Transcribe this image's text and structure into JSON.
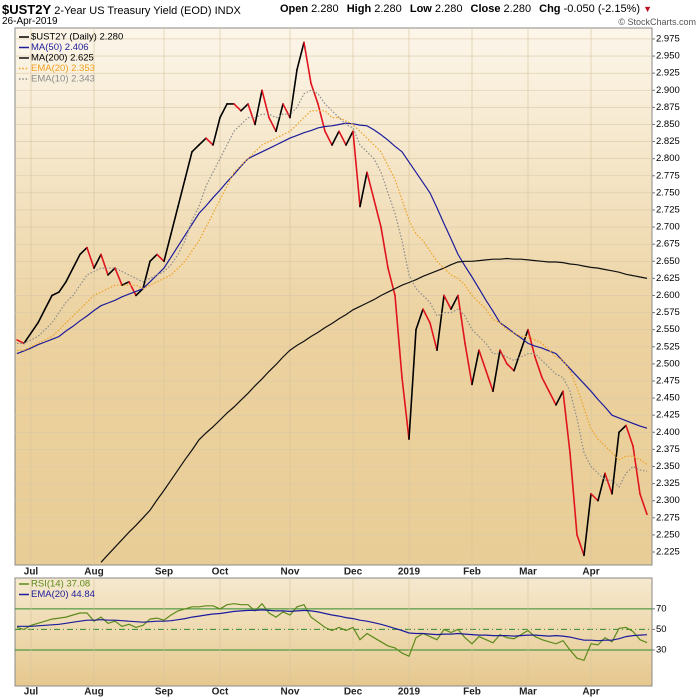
{
  "header": {
    "symbol": "$UST2Y",
    "name": "2-Year US Treasury Yield (EOD)",
    "exchange": "INDX",
    "date": "26-Apr-2019",
    "quote": [
      {
        "label": "Open",
        "value": "2.280"
      },
      {
        "label": "High",
        "value": "2.280"
      },
      {
        "label": "Low",
        "value": "2.280"
      },
      {
        "label": "Close",
        "value": "2.280"
      },
      {
        "label": "Chg",
        "value": "-0.050 (-2.15%)"
      }
    ],
    "credit": "© StockCharts.com"
  },
  "chart_data": [
    {
      "type": "line",
      "grid": true,
      "categories": [
        null,
        null,
        "Jul",
        null,
        null,
        null,
        null,
        null,
        null,
        null,
        null,
        "Aug",
        null,
        null,
        null,
        null,
        null,
        null,
        null,
        null,
        null,
        "Sep",
        null,
        null,
        null,
        null,
        null,
        null,
        null,
        "Oct",
        null,
        null,
        null,
        null,
        null,
        null,
        null,
        null,
        null,
        "Nov",
        null,
        null,
        null,
        null,
        null,
        null,
        null,
        null,
        "Dec",
        null,
        null,
        null,
        null,
        null,
        null,
        null,
        "2019",
        null,
        null,
        null,
        null,
        null,
        null,
        null,
        null,
        "Feb",
        null,
        null,
        null,
        null,
        null,
        null,
        null,
        "Mar",
        null,
        null,
        null,
        null,
        null,
        null,
        null,
        null,
        "Apr",
        null,
        null,
        null,
        null,
        null,
        null,
        null,
        null
      ],
      "ylim": [
        2.206,
        2.991
      ],
      "yticks": [
        2.225,
        {
          "value": 2.25,
          "label": "2.250"
        },
        2.275,
        {
          "value": 2.3,
          "label": "2.300"
        },
        2.325,
        {
          "value": 2.35,
          "label": "2.350"
        },
        2.375,
        {
          "value": 2.4,
          "label": "2.400"
        },
        2.425,
        {
          "value": 2.45,
          "label": "2.450"
        },
        2.475,
        {
          "value": 2.5,
          "label": "2.500"
        },
        2.525,
        {
          "value": 2.55,
          "label": "2.550"
        },
        2.575,
        {
          "value": 2.6,
          "label": "2.600"
        },
        2.625,
        {
          "value": 2.65,
          "label": "2.650"
        },
        2.675,
        {
          "value": 2.7,
          "label": "2.700"
        },
        2.725,
        {
          "value": 2.75,
          "label": "2.750"
        },
        2.775,
        {
          "value": 2.8,
          "label": "2.800"
        },
        2.825,
        {
          "value": 2.85,
          "label": "2.850"
        },
        2.875,
        {
          "value": 2.9,
          "label": "2.900"
        },
        2.925,
        {
          "value": 2.95,
          "label": "2.950"
        },
        2.975
      ],
      "series": [
        {
          "name": "$UST2Y (Daily) 2.280",
          "color": "#000000",
          "down_color": "#e0141e",
          "values": [
            2.535,
            2.53,
            2.545,
            2.56,
            2.58,
            2.6,
            2.605,
            2.62,
            2.64,
            2.66,
            2.67,
            2.64,
            2.66,
            2.63,
            2.64,
            2.615,
            2.62,
            2.6,
            2.61,
            2.65,
            2.66,
            2.65,
            2.69,
            2.73,
            2.77,
            2.81,
            2.82,
            2.83,
            2.82,
            2.86,
            2.88,
            2.88,
            2.87,
            2.88,
            2.85,
            2.9,
            2.86,
            2.84,
            2.88,
            2.86,
            2.93,
            2.97,
            2.91,
            2.88,
            2.84,
            2.82,
            2.84,
            2.82,
            2.84,
            2.73,
            2.78,
            2.74,
            2.7,
            2.64,
            2.6,
            2.48,
            2.39,
            2.55,
            2.58,
            2.56,
            2.52,
            2.6,
            2.58,
            2.6,
            2.53,
            2.47,
            2.52,
            2.49,
            2.46,
            2.52,
            2.5,
            2.49,
            2.52,
            2.55,
            2.51,
            2.48,
            2.46,
            2.44,
            2.46,
            2.37,
            2.25,
            2.22,
            2.31,
            2.3,
            2.34,
            2.31,
            2.4,
            2.41,
            2.38,
            2.31,
            2.28
          ]
        },
        {
          "name": "MA(50) 2.406",
          "color": "#1c1c9c",
          "values": [
            2.515,
            2.519,
            2.523,
            2.528,
            2.532,
            2.536,
            2.54,
            2.548,
            2.555,
            2.563,
            2.57,
            2.578,
            2.585,
            2.589,
            2.593,
            2.598,
            2.602,
            2.606,
            2.61,
            2.62,
            2.63,
            2.64,
            2.656,
            2.672,
            2.688,
            2.704,
            2.72,
            2.731,
            2.743,
            2.754,
            2.766,
            2.777,
            2.789,
            2.8,
            2.805,
            2.81,
            2.815,
            2.82,
            2.825,
            2.83,
            2.834,
            2.838,
            2.841,
            2.845,
            2.847,
            2.848,
            2.85,
            2.852,
            2.851,
            2.849,
            2.848,
            2.842,
            2.835,
            2.827,
            2.818,
            2.81,
            2.795,
            2.78,
            2.765,
            2.75,
            2.728,
            2.705,
            2.683,
            2.66,
            2.643,
            2.627,
            2.61,
            2.593,
            2.577,
            2.56,
            2.553,
            2.545,
            2.538,
            2.53,
            2.526,
            2.523,
            2.519,
            2.515,
            2.504,
            2.493,
            2.482,
            2.471,
            2.46,
            2.448,
            2.437,
            2.425,
            2.421,
            2.417,
            2.413,
            2.409,
            2.406
          ]
        },
        {
          "name": "MA(200) 2.625",
          "color": "#111111",
          "values": [
            null,
            null,
            null,
            null,
            null,
            null,
            null,
            null,
            null,
            null,
            null,
            null,
            2.21,
            2.221,
            2.232,
            2.243,
            2.254,
            2.264,
            2.275,
            2.286,
            2.301,
            2.315,
            2.33,
            2.345,
            2.36,
            2.374,
            2.389,
            2.399,
            2.408,
            2.418,
            2.428,
            2.437,
            2.447,
            2.457,
            2.468,
            2.478,
            2.489,
            2.499,
            2.51,
            2.52,
            2.527,
            2.533,
            2.54,
            2.546,
            2.553,
            2.559,
            2.566,
            2.572,
            2.579,
            2.584,
            2.589,
            2.594,
            2.6,
            2.605,
            2.61,
            2.615,
            2.619,
            2.623,
            2.628,
            2.632,
            2.636,
            2.64,
            2.645,
            2.649,
            2.65,
            2.65,
            2.651,
            2.652,
            2.653,
            2.653,
            2.654,
            2.653,
            2.653,
            2.652,
            2.651,
            2.65,
            2.649,
            2.649,
            2.648,
            2.646,
            2.645,
            2.643,
            2.641,
            2.64,
            2.638,
            2.636,
            2.634,
            2.631,
            2.629,
            2.627,
            2.625
          ]
        },
        {
          "name": "EMA(20) 2.353",
          "color": "#f0a020",
          "dash": "dotted",
          "values": [
            2.52,
            2.52,
            2.525,
            2.53,
            2.535,
            2.54,
            2.55,
            2.56,
            2.57,
            2.58,
            2.59,
            2.6,
            2.605,
            2.61,
            2.615,
            2.615,
            2.615,
            2.615,
            2.61,
            2.615,
            2.62,
            2.625,
            2.63,
            2.64,
            2.65,
            2.665,
            2.68,
            2.7,
            2.72,
            2.74,
            2.76,
            2.78,
            2.79,
            2.8,
            2.81,
            2.82,
            2.825,
            2.83,
            2.835,
            2.84,
            2.85,
            2.86,
            2.87,
            2.87,
            2.87,
            2.86,
            2.86,
            2.855,
            2.85,
            2.84,
            2.83,
            2.82,
            2.81,
            2.79,
            2.77,
            2.74,
            2.71,
            2.69,
            2.68,
            2.665,
            2.65,
            2.64,
            2.63,
            2.625,
            2.615,
            2.6,
            2.59,
            2.58,
            2.565,
            2.56,
            2.55,
            2.545,
            2.54,
            2.54,
            2.535,
            2.53,
            2.52,
            2.51,
            2.505,
            2.49,
            2.465,
            2.435,
            2.405,
            2.39,
            2.38,
            2.37,
            2.36,
            2.365,
            2.365,
            2.36,
            2.353
          ]
        },
        {
          "name": "EMA(10) 2.343",
          "color": "#8c8c8c",
          "dash": "dotted",
          "values": [
            2.53,
            2.53,
            2.535,
            2.54,
            2.55,
            2.56,
            2.575,
            2.59,
            2.6,
            2.615,
            2.63,
            2.635,
            2.64,
            2.64,
            2.64,
            2.635,
            2.63,
            2.625,
            2.62,
            2.625,
            2.63,
            2.635,
            2.645,
            2.66,
            2.68,
            2.71,
            2.73,
            2.76,
            2.78,
            2.8,
            2.82,
            2.84,
            2.85,
            2.86,
            2.86,
            2.865,
            2.865,
            2.86,
            2.865,
            2.865,
            2.875,
            2.895,
            2.9,
            2.895,
            2.88,
            2.87,
            2.86,
            2.85,
            2.845,
            2.82,
            2.81,
            2.8,
            2.78,
            2.75,
            2.72,
            2.68,
            2.63,
            2.61,
            2.6,
            2.59,
            2.57,
            2.575,
            2.575,
            2.58,
            2.57,
            2.55,
            2.54,
            2.53,
            2.515,
            2.515,
            2.51,
            2.505,
            2.51,
            2.515,
            2.515,
            2.505,
            2.495,
            2.485,
            2.48,
            2.46,
            2.42,
            2.37,
            2.35,
            2.34,
            2.33,
            2.33,
            2.32,
            2.34,
            2.35,
            2.345,
            2.343
          ]
        }
      ]
    },
    {
      "type": "line",
      "grid": true,
      "grid_color": "#2e8b2e",
      "categories": [
        null,
        null,
        "Jul",
        null,
        null,
        null,
        null,
        null,
        null,
        null,
        null,
        "Aug",
        null,
        null,
        null,
        null,
        null,
        null,
        null,
        null,
        null,
        "Sep",
        null,
        null,
        null,
        null,
        null,
        null,
        null,
        "Oct",
        null,
        null,
        null,
        null,
        null,
        null,
        null,
        null,
        null,
        "Nov",
        null,
        null,
        null,
        null,
        null,
        null,
        null,
        null,
        "Dec",
        null,
        null,
        null,
        null,
        null,
        null,
        null,
        "2019",
        null,
        null,
        null,
        null,
        null,
        null,
        null,
        null,
        "Feb",
        null,
        null,
        null,
        null,
        null,
        null,
        null,
        "Mar",
        null,
        null,
        null,
        null,
        null,
        null,
        null,
        null,
        "Apr",
        null,
        null,
        null,
        null,
        null,
        null,
        null,
        null
      ],
      "ylim": [
        -5,
        100
      ],
      "yticks": [
        30,
        50,
        70
      ],
      "series": [
        {
          "name": "RSI(14) 37.08",
          "color": "#5c8a1a",
          "values": [
            52,
            50,
            54,
            56,
            58,
            60,
            61,
            62,
            64,
            66,
            66,
            58,
            62,
            56,
            58,
            53,
            55,
            52,
            54,
            60,
            61,
            59,
            64,
            68,
            70,
            72,
            72,
            73,
            73,
            70,
            74,
            75,
            74,
            74,
            68,
            75,
            66,
            62,
            67,
            64,
            72,
            74,
            62,
            57,
            52,
            49,
            52,
            49,
            52,
            40,
            46,
            42,
            38,
            34,
            32,
            27,
            24,
            42,
            46,
            43,
            40,
            50,
            47,
            50,
            42,
            36,
            43,
            40,
            37,
            45,
            42,
            41,
            45,
            49,
            43,
            40,
            38,
            36,
            39,
            30,
            22,
            20,
            36,
            35,
            42,
            38,
            51,
            52,
            48,
            40,
            37.08
          ]
        },
        {
          "name": "EMA(20) 44.84",
          "color": "#1c1c9c",
          "values": [
            53,
            53,
            53,
            53.5,
            54,
            54.5,
            55,
            56,
            57,
            58,
            59,
            59,
            59.5,
            59,
            59,
            58.5,
            58,
            57.5,
            57,
            57.5,
            58,
            58,
            58.5,
            59.5,
            60.5,
            62,
            63,
            64,
            65,
            65.5,
            66.5,
            67.5,
            68,
            68.5,
            68.5,
            69,
            68.5,
            68,
            68,
            67.5,
            68,
            68.5,
            68,
            67,
            65.5,
            64,
            63,
            61.5,
            60.5,
            59,
            58,
            56.5,
            55,
            53,
            51,
            49,
            46.5,
            46,
            46,
            45.5,
            45,
            45.5,
            45.5,
            46,
            45.5,
            45,
            44.5,
            44.5,
            44,
            44,
            44,
            43.5,
            44,
            44.5,
            44.5,
            44,
            43.5,
            44,
            43.5,
            42.5,
            41,
            39.5,
            39.5,
            39,
            39.5,
            39.5,
            41,
            43,
            44,
            44.5,
            44.84
          ]
        }
      ]
    }
  ]
}
